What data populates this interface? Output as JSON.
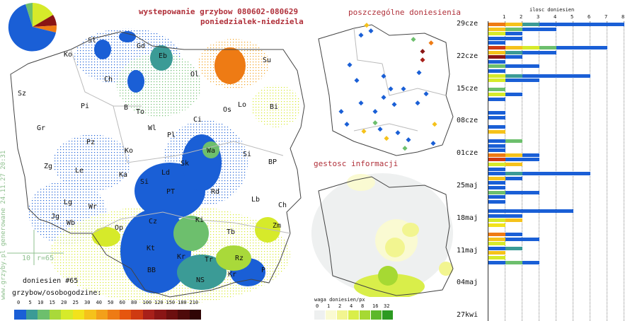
{
  "header": {
    "title_line1": "wystepowanie grzybow 080602-080629",
    "title_line2": "poniedzialek-niedziela"
  },
  "side_note": "www.grzyby.pl generowane 24.11.27 20:31",
  "scale_marker": {
    "label_a": "10",
    "label_b": "r=65"
  },
  "report_count": "doniesien #65",
  "legend_main": {
    "title": "grzybow/osobogodzine:",
    "ticks": [
      "0",
      "5",
      "10",
      "15",
      "20",
      "25",
      "30",
      "40",
      "50",
      "60",
      "80",
      "100",
      "120",
      "150",
      "180",
      "210"
    ],
    "colors": [
      "#1a5fd6",
      "#3b9b96",
      "#6dbf6d",
      "#a9d93a",
      "#d6ea2a",
      "#f2e21c",
      "#f5c21b",
      "#f3a01a",
      "#ee7b14",
      "#e6560f",
      "#cf3a12",
      "#a8201a",
      "#8a1515",
      "#6c0f0f",
      "#4e0a0a",
      "#300606"
    ]
  },
  "map_small_top": {
    "title": "poszczególne doniesienia"
  },
  "map_small_bottom": {
    "title": "gestosc informacji",
    "legend_title": "waga doniesien/px",
    "ticks": [
      "0",
      "1",
      "2",
      "4",
      "8",
      "16",
      "32"
    ],
    "colors": [
      "#eef0f0",
      "#fafad2",
      "#f2f590",
      "#d9ee4a",
      "#a6d933",
      "#5cb82b",
      "#2c9a22"
    ]
  },
  "places_main": [
    {
      "n": "Sl"
    },
    {
      "n": "Gd"
    },
    {
      "n": "Eb"
    },
    {
      "n": "Ko"
    },
    {
      "n": "Ch"
    },
    {
      "n": "Ol"
    },
    {
      "n": "Su"
    },
    {
      "n": "Sz"
    },
    {
      "n": "Pi"
    },
    {
      "n": "B"
    },
    {
      "n": "To"
    },
    {
      "n": "Os"
    },
    {
      "n": "Lo"
    },
    {
      "n": "Bi"
    },
    {
      "n": "Gr"
    },
    {
      "n": "Wl"
    },
    {
      "n": "Pl"
    },
    {
      "n": "Ci"
    },
    {
      "n": "Pz"
    },
    {
      "n": "Ko"
    },
    {
      "n": "Wa"
    },
    {
      "n": "Si"
    },
    {
      "n": "Zg"
    },
    {
      "n": "Le"
    },
    {
      "n": "Ka"
    },
    {
      "n": "Ld"
    },
    {
      "n": "Sk"
    },
    {
      "n": "BP"
    },
    {
      "n": "Si"
    },
    {
      "n": "PT"
    },
    {
      "n": "Rd"
    },
    {
      "n": "Lg"
    },
    {
      "n": "Wr"
    },
    {
      "n": "Lb"
    },
    {
      "n": "Jg"
    },
    {
      "n": "Wb"
    },
    {
      "n": "Ch"
    },
    {
      "n": "Op"
    },
    {
      "n": "Cz"
    },
    {
      "n": "Ki"
    },
    {
      "n": "Zm"
    },
    {
      "n": "Tb"
    },
    {
      "n": "Kt"
    },
    {
      "n": "Kr"
    },
    {
      "n": "Tr"
    },
    {
      "n": "Rz"
    },
    {
      "n": "BB"
    },
    {
      "n": "NS"
    },
    {
      "n": "Kr"
    },
    {
      "n": "P"
    }
  ],
  "timeline": {
    "axis_title": "ilosc doniesien",
    "axis_ticks": [
      "1",
      "2",
      "3",
      "4",
      "5",
      "6",
      "7",
      "8"
    ],
    "dates": [
      "29cze",
      "22cze",
      "15cze",
      "08cze",
      "01cze",
      "25maj",
      "18maj",
      "11maj",
      "04maj",
      "27kwi"
    ],
    "bars": [
      {
        "segs": [
          [
            "#ee7b14",
            1
          ],
          [
            "#f5c21b",
            1
          ],
          [
            "#3b9b96",
            1
          ],
          [
            "#1a5fd6",
            5
          ]
        ]
      },
      {
        "segs": [
          [
            "#f5c21b",
            1
          ],
          [
            "#6dbf6d",
            1
          ],
          [
            "#1a5fd6",
            2
          ]
        ]
      },
      {
        "segs": [
          [
            "#d6ea2a",
            1
          ],
          [
            "#1a5fd6",
            1
          ]
        ]
      },
      {
        "segs": [
          [
            "#1a5fd6",
            2
          ]
        ]
      },
      {
        "segs": [
          [
            "#1a5fd6",
            1
          ]
        ]
      },
      {
        "segs": [
          [
            "#cf3a12",
            1
          ],
          [
            "#f5c21b",
            1
          ],
          [
            "#d6ea2a",
            1
          ],
          [
            "#6dbf6d",
            1
          ],
          [
            "#1a5fd6",
            3
          ]
        ]
      },
      {
        "segs": [
          [
            "#f5c21b",
            1
          ],
          [
            "#3b9b96",
            1
          ],
          [
            "#1a5fd6",
            2
          ]
        ]
      },
      {
        "segs": [
          [
            "#8a1515",
            1
          ],
          [
            "#1a5fd6",
            1
          ]
        ]
      },
      {
        "segs": [
          [
            "#1a5fd6",
            1
          ]
        ]
      },
      {
        "segs": [
          [
            "#6dbf6d",
            1
          ],
          [
            "#1a5fd6",
            2
          ]
        ]
      },
      {
        "segs": [
          [
            "#1a5fd6",
            1
          ]
        ]
      },
      {
        "segs": [
          [
            "#d6ea2a",
            1
          ],
          [
            "#3b9b96",
            1
          ],
          [
            "#1a5fd6",
            4
          ]
        ]
      },
      {
        "segs": [
          [
            "#d6ea2a",
            1
          ],
          [
            "#1a5fd6",
            2
          ]
        ]
      },
      {
        "segs": []
      },
      {
        "segs": [
          [
            "#6dbf6d",
            1
          ]
        ]
      },
      {
        "segs": [
          [
            "#d6ea2a",
            1
          ],
          [
            "#1a5fd6",
            1
          ]
        ]
      },
      {
        "segs": [
          [
            "#1a5fd6",
            1
          ]
        ]
      },
      {
        "segs": []
      },
      {
        "segs": []
      },
      {
        "segs": [
          [
            "#1a5fd6",
            1
          ]
        ]
      },
      {
        "segs": [
          [
            "#1a5fd6",
            1
          ]
        ]
      },
      {
        "segs": []
      },
      {
        "segs": [
          [
            "#1a5fd6",
            1
          ]
        ]
      },
      {
        "segs": [
          [
            "#f5c21b",
            1
          ]
        ]
      },
      {
        "segs": []
      },
      {
        "segs": [
          [
            "#1a5fd6",
            1
          ],
          [
            "#6dbf6d",
            1
          ]
        ]
      },
      {
        "segs": [
          [
            "#1a5fd6",
            1
          ]
        ]
      },
      {
        "segs": [
          [
            "#1a5fd6",
            1
          ]
        ]
      },
      {
        "segs": [
          [
            "#ee7b14",
            1
          ],
          [
            "#f5c21b",
            1
          ],
          [
            "#1a5fd6",
            1
          ]
        ]
      },
      {
        "segs": [
          [
            "#cf3a12",
            1
          ],
          [
            "#1a5fd6",
            2
          ]
        ]
      },
      {
        "segs": [
          [
            "#d6ea2a",
            1
          ],
          [
            "#f5c21b",
            1
          ]
        ]
      },
      {
        "segs": [
          [
            "#1a5fd6",
            1
          ]
        ]
      },
      {
        "segs": [
          [
            "#1a5fd6",
            1
          ],
          [
            "#3b9b96",
            1
          ],
          [
            "#1a5fd6",
            4
          ]
        ]
      },
      {
        "segs": [
          [
            "#f5c21b",
            1
          ],
          [
            "#1a5fd6",
            1
          ]
        ]
      },
      {
        "segs": [
          [
            "#1a5fd6",
            1
          ]
        ]
      },
      {
        "segs": [
          [
            "#1a5fd6",
            1
          ]
        ]
      },
      {
        "segs": [
          [
            "#6dbf6d",
            1
          ],
          [
            "#1a5fd6",
            2
          ]
        ]
      },
      {
        "segs": [
          [
            "#1a5fd6",
            1
          ]
        ]
      },
      {
        "segs": [
          [
            "#1a5fd6",
            1
          ]
        ]
      },
      {
        "segs": []
      },
      {
        "segs": [
          [
            "#1a5fd6",
            1
          ],
          [
            "#1a5fd6",
            4
          ]
        ]
      },
      {
        "segs": [
          [
            "#1a5fd6",
            1
          ],
          [
            "#1a5fd6",
            1
          ]
        ]
      },
      {
        "segs": [
          [
            "#d6ea2a",
            1
          ],
          [
            "#f5c21b",
            1
          ]
        ]
      },
      {
        "segs": [
          [
            "#f2e21c",
            1
          ]
        ]
      },
      {
        "segs": []
      },
      {
        "segs": [
          [
            "#ee7b14",
            1
          ],
          [
            "#1a5fd6",
            1
          ]
        ]
      },
      {
        "segs": [
          [
            "#f5c21b",
            1
          ],
          [
            "#1a5fd6",
            2
          ]
        ]
      },
      {
        "segs": [
          [
            "#d6ea2a",
            1
          ]
        ]
      },
      {
        "segs": [
          [
            "#1a5fd6",
            1
          ],
          [
            "#3b9b96",
            1
          ]
        ]
      },
      {
        "segs": [
          [
            "#f5c21b",
            1
          ]
        ]
      },
      {
        "segs": [
          [
            "#d6ea2a",
            1
          ]
        ]
      },
      {
        "segs": [
          [
            "#1a5fd6",
            1
          ],
          [
            "#6dbf6d",
            1
          ],
          [
            "#1a5fd6",
            1
          ]
        ]
      }
    ]
  }
}
